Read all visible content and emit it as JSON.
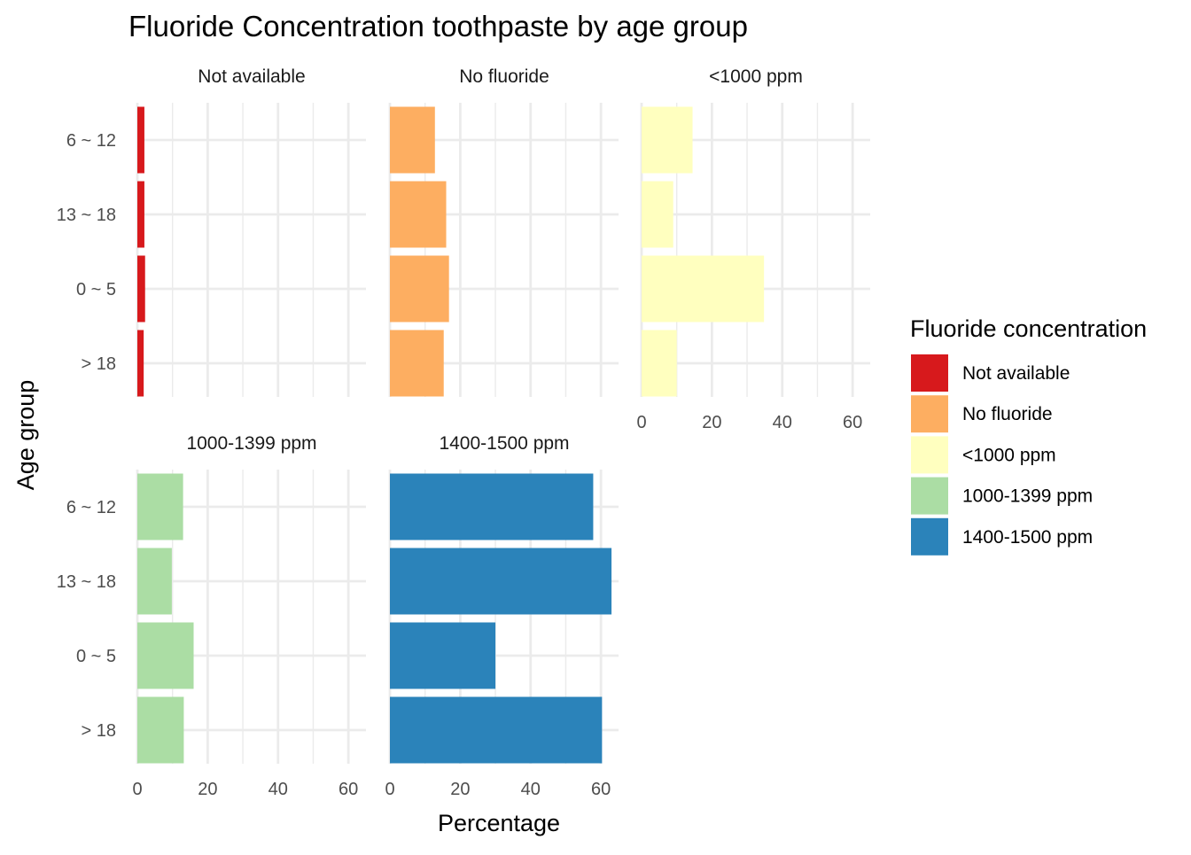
{
  "chart_data": {
    "type": "bar",
    "orientation": "horizontal",
    "faceted": true,
    "title": "Fluoride Concentration toothpaste by age group",
    "xlabel": "Percentage",
    "ylabel": "Age group",
    "xlim": [
      0,
      65
    ],
    "x_ticks": [
      "0",
      "20",
      "40",
      "60"
    ],
    "x_tick_values": [
      0,
      20,
      40,
      60
    ],
    "grid": true,
    "categories": [
      "6 ~ 12",
      "13 ~ 18",
      "0 ~ 5",
      "> 18"
    ],
    "legend": {
      "title": "Fluoride concentration",
      "placement": "right"
    },
    "series": [
      {
        "name": "Not available",
        "color": "#D7191C",
        "values": [
          2.0,
          2.0,
          2.2,
          1.8
        ]
      },
      {
        "name": "No fluoride",
        "color": "#FDAE61",
        "values": [
          12.8,
          16.0,
          16.8,
          15.3
        ]
      },
      {
        "name": "<1000 ppm",
        "color": "#FFFFBF",
        "values": [
          14.5,
          9.0,
          34.8,
          10.0
        ]
      },
      {
        "name": "1000-1399 ppm",
        "color": "#ABDDA4",
        "values": [
          13.0,
          9.8,
          16.0,
          13.2
        ]
      },
      {
        "name": "1400-1500 ppm",
        "color": "#2B83BA",
        "values": [
          57.8,
          63.0,
          30.0,
          60.3
        ]
      }
    ]
  }
}
